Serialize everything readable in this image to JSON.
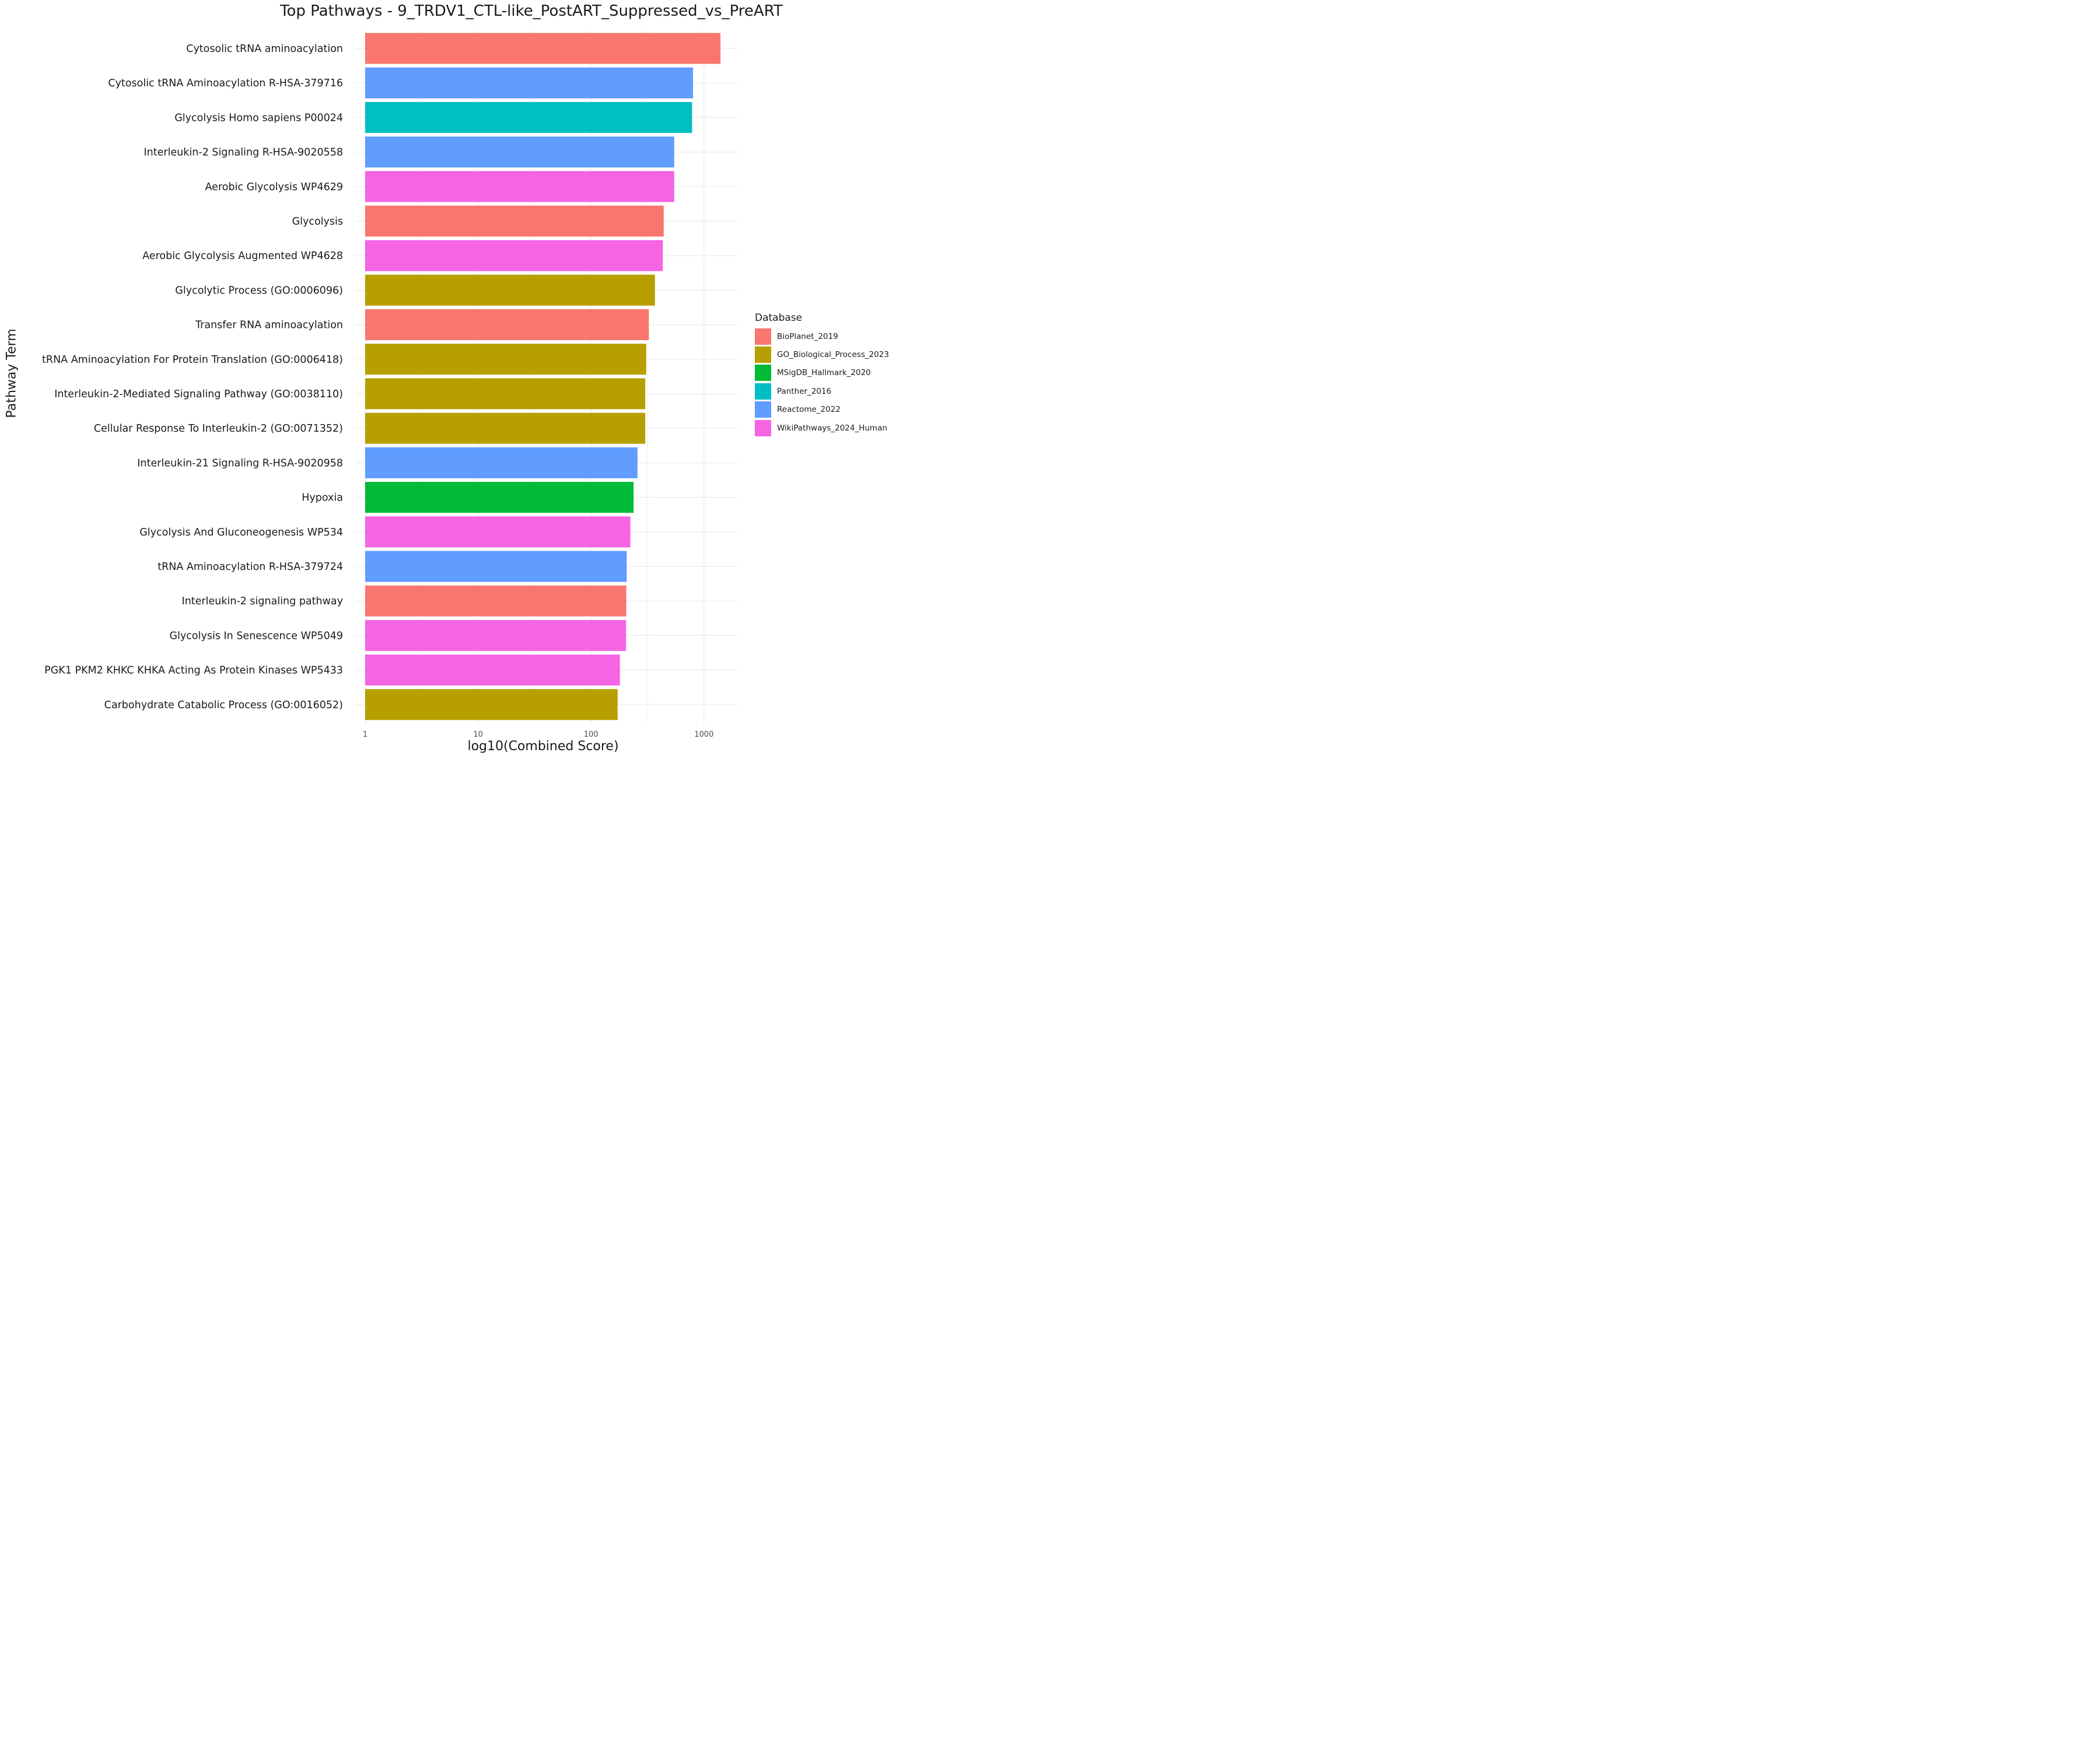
{
  "chart_data": {
    "type": "bar",
    "orientation": "horizontal",
    "title": "Top Pathways - 9_TRDV1_CTL-like_PostART_Suppressed_vs_PreART",
    "xlabel": "log10(Combined Score)",
    "ylabel": "Pathway Term",
    "x_scale": "log10",
    "xlim": [
      1,
      1800
    ],
    "x_ticks": [
      1,
      10,
      100,
      1000
    ],
    "x_tick_labels": [
      "1",
      "10",
      "100",
      "1000"
    ],
    "grid": true,
    "legend_title": "Database",
    "legend_position": "right",
    "legend": [
      {
        "name": "BioPlanet_2019",
        "color": "#F8766D"
      },
      {
        "name": "GO_Biological_Process_2023",
        "color": "#B79F00"
      },
      {
        "name": "MSigDB_Hallmark_2020",
        "color": "#00BA38"
      },
      {
        "name": "Panther_2016",
        "color": "#00BFC4"
      },
      {
        "name": "Reactome_2022",
        "color": "#619CFF"
      },
      {
        "name": "WikiPathways_2024_Human",
        "color": "#F564E3"
      }
    ],
    "bars": [
      {
        "term": "Cytosolic tRNA aminoacylation",
        "value": 1400,
        "database": "BioPlanet_2019"
      },
      {
        "term": "Cytosolic tRNA Aminoacylation R-HSA-379716",
        "value": 800,
        "database": "Reactome_2022"
      },
      {
        "term": "Glycolysis Homo sapiens P00024",
        "value": 785,
        "database": "Panther_2016"
      },
      {
        "term": "Interleukin-2 Signaling R-HSA-9020558",
        "value": 545,
        "database": "Reactome_2022"
      },
      {
        "term": "Aerobic Glycolysis WP4629",
        "value": 545,
        "database": "WikiPathways_2024_Human"
      },
      {
        "term": "Glycolysis",
        "value": 440,
        "database": "BioPlanet_2019"
      },
      {
        "term": "Aerobic Glycolysis Augmented WP4628",
        "value": 432,
        "database": "WikiPathways_2024_Human"
      },
      {
        "term": "Glycolytic Process (GO:0006096)",
        "value": 368,
        "database": "GO_Biological_Process_2023"
      },
      {
        "term": "Transfer RNA aminoacylation",
        "value": 325,
        "database": "BioPlanet_2019"
      },
      {
        "term": "tRNA Aminoacylation For Protein Translation (GO:0006418)",
        "value": 308,
        "database": "GO_Biological_Process_2023"
      },
      {
        "term": "Interleukin-2-Mediated Signaling Pathway (GO:0038110)",
        "value": 302,
        "database": "GO_Biological_Process_2023"
      },
      {
        "term": "Cellular Response To Interleukin-2 (GO:0071352)",
        "value": 302,
        "database": "GO_Biological_Process_2023"
      },
      {
        "term": "Interleukin-21 Signaling R-HSA-9020958",
        "value": 258,
        "database": "Reactome_2022"
      },
      {
        "term": "Hypoxia",
        "value": 238,
        "database": "MSigDB_Hallmark_2020"
      },
      {
        "term": "Glycolysis And Gluconeogenesis WP534",
        "value": 223,
        "database": "WikiPathways_2024_Human"
      },
      {
        "term": "tRNA Aminoacylation R-HSA-379724",
        "value": 207,
        "database": "Reactome_2022"
      },
      {
        "term": "Interleukin-2 signaling pathway",
        "value": 205,
        "database": "BioPlanet_2019"
      },
      {
        "term": "Glycolysis In Senescence WP5049",
        "value": 204,
        "database": "WikiPathways_2024_Human"
      },
      {
        "term": "PGK1 PKM2 KHKC KHKA Acting As Protein Kinases WP5433",
        "value": 180,
        "database": "WikiPathways_2024_Human"
      },
      {
        "term": "Carbohydrate Catabolic Process (GO:0016052)",
        "value": 172,
        "database": "GO_Biological_Process_2023"
      }
    ]
  }
}
